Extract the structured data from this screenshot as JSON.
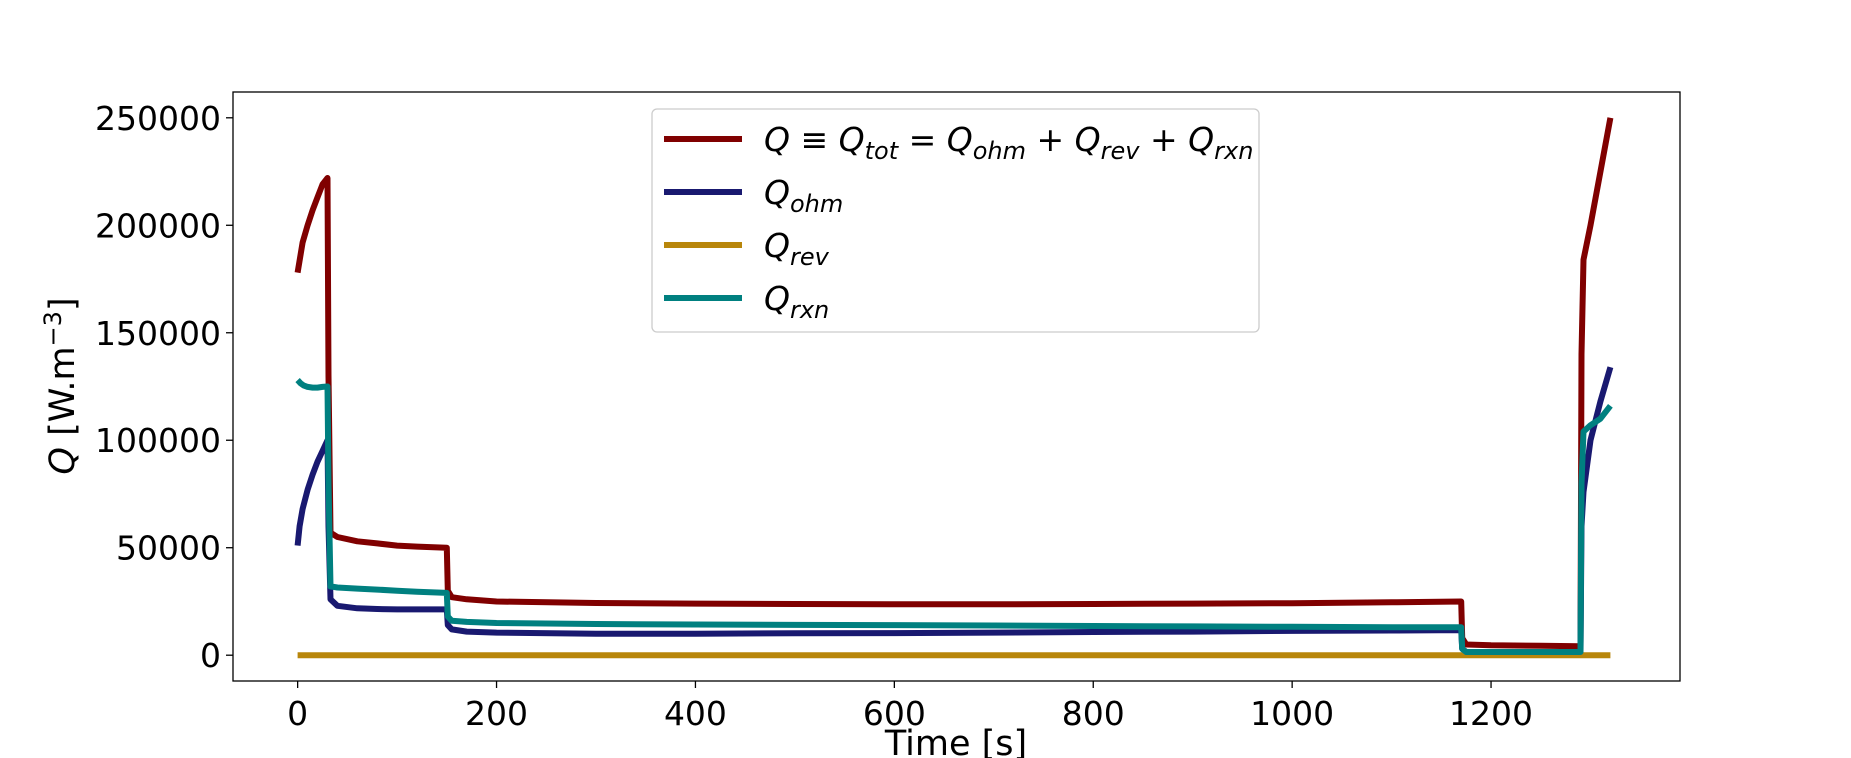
{
  "chart_data": {
    "type": "line",
    "xlabel": "Time [s]",
    "ylabel_main": "Q",
    "ylabel_unit": "[W.m",
    "ylabel_exp": "−3",
    "ylabel_close": "]",
    "xlim": [
      -65,
      1390
    ],
    "ylim": [
      -12000,
      262000
    ],
    "xticks": [
      0,
      200,
      400,
      600,
      800,
      1000,
      1200
    ],
    "yticks": [
      0,
      50000,
      100000,
      150000,
      200000,
      250000
    ],
    "xtick_labels": [
      "0",
      "200",
      "400",
      "600",
      "800",
      "1000",
      "1200"
    ],
    "ytick_labels": [
      "0",
      "50000",
      "100000",
      "150000",
      "200000",
      "250000"
    ],
    "grid": false,
    "legend_position": "top-center",
    "series": [
      {
        "name": "Q ≡ Q_tot = Q_ohm + Q_rev + Q_rxn",
        "legend_parts": [
          {
            "t": "Q",
            "it": true
          },
          {
            "t": " ≡ ",
            "it": false
          },
          {
            "t": "Q",
            "it": true
          },
          {
            "t": "tot",
            "sub": true
          },
          {
            "t": " = ",
            "it": false
          },
          {
            "t": "Q",
            "it": true
          },
          {
            "t": "ohm",
            "sub": true
          },
          {
            "t": " + ",
            "it": false
          },
          {
            "t": "Q",
            "it": true
          },
          {
            "t": "rev",
            "sub": true
          },
          {
            "t": " + ",
            "it": false
          },
          {
            "t": "Q",
            "it": true
          },
          {
            "t": "rxn",
            "sub": true
          }
        ],
        "color": "#800000",
        "x": [
          0,
          5,
          10,
          15,
          20,
          25,
          30,
          31,
          33,
          40,
          60,
          80,
          100,
          120,
          150,
          151,
          155,
          170,
          200,
          300,
          400,
          500,
          600,
          700,
          800,
          900,
          1000,
          1100,
          1170,
          1171,
          1175,
          1200,
          1250,
          1290,
          1291,
          1293,
          1300,
          1320
        ],
        "y": [
          178000,
          192000,
          200000,
          207000,
          213000,
          219000,
          222000,
          130000,
          57000,
          55000,
          53000,
          52000,
          51000,
          50500,
          50000,
          30000,
          27000,
          26000,
          25000,
          24300,
          24000,
          23800,
          23700,
          23700,
          23800,
          24000,
          24200,
          24600,
          25000,
          8000,
          5000,
          4600,
          4400,
          4200,
          140000,
          184000,
          200000,
          250000
        ]
      },
      {
        "name": "Q_ohm",
        "legend_parts": [
          {
            "t": "Q",
            "it": true
          },
          {
            "t": "ohm",
            "sub": true
          }
        ],
        "color": "#191970",
        "x": [
          0,
          2,
          5,
          10,
          15,
          20,
          25,
          30,
          31,
          33,
          40,
          60,
          80,
          100,
          120,
          150,
          151,
          155,
          170,
          200,
          300,
          400,
          500,
          600,
          700,
          800,
          900,
          1000,
          1100,
          1170,
          1171,
          1175,
          1200,
          1250,
          1290,
          1291,
          1293,
          1300,
          1310,
          1320
        ],
        "y": [
          51000,
          60000,
          68000,
          77000,
          84000,
          90000,
          95000,
          100000,
          60000,
          26000,
          23000,
          21800,
          21500,
          21300,
          21300,
          21300,
          14000,
          12000,
          11000,
          10500,
          10000,
          10000,
          10200,
          10300,
          10500,
          10800,
          11000,
          11300,
          11500,
          11700,
          3000,
          1500,
          1200,
          1000,
          900,
          60000,
          76000,
          100000,
          118000,
          134000
        ]
      },
      {
        "name": "Q_rev",
        "legend_parts": [
          {
            "t": "Q",
            "it": true
          },
          {
            "t": "rev",
            "sub": true
          }
        ],
        "color": "#b8860b",
        "x": [
          0,
          1320
        ],
        "y": [
          0,
          0
        ]
      },
      {
        "name": "Q_rxn",
        "legend_parts": [
          {
            "t": "Q",
            "it": true
          },
          {
            "t": "rxn",
            "sub": true
          }
        ],
        "color": "#008080",
        "x": [
          0,
          3,
          6,
          10,
          15,
          20,
          25,
          30,
          31,
          33,
          40,
          60,
          80,
          100,
          120,
          150,
          151,
          155,
          170,
          200,
          300,
          400,
          500,
          600,
          700,
          800,
          900,
          1000,
          1100,
          1170,
          1171,
          1175,
          1200,
          1250,
          1290,
          1291,
          1293,
          1300,
          1310,
          1320
        ],
        "y": [
          128000,
          126500,
          125500,
          124800,
          124500,
          124500,
          124800,
          125000,
          80000,
          32000,
          31500,
          31000,
          30500,
          30000,
          29500,
          29000,
          18000,
          16000,
          15500,
          15000,
          14500,
          14300,
          14100,
          14000,
          13800,
          13600,
          13400,
          13200,
          13000,
          13000,
          3000,
          1500,
          1500,
          1500,
          1500,
          80000,
          104000,
          107000,
          110000,
          116000
        ]
      }
    ]
  }
}
